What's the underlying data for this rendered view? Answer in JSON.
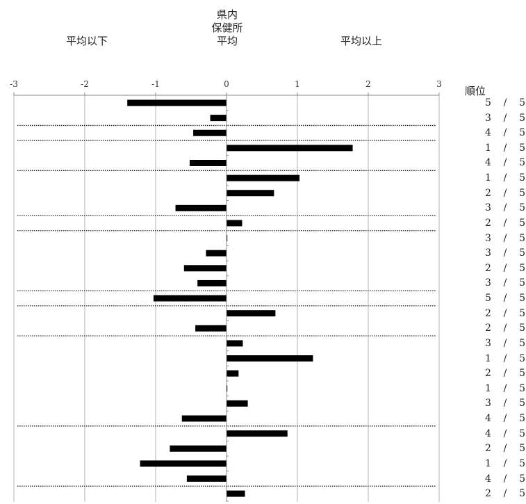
{
  "header": {
    "center_line1": "県内",
    "center_line2": "保健所",
    "center_line3": "平均",
    "below_label": "平均以下",
    "above_label": "平均以上"
  },
  "rank_header": "順位",
  "chart_data": {
    "type": "bar",
    "orientation": "horizontal",
    "xlim": [
      -3,
      3
    ],
    "ticks": [
      -3,
      -2,
      -1,
      0,
      1,
      2,
      3
    ],
    "tick_labels": [
      "-3",
      "-2",
      "-1",
      "0",
      "1",
      "2",
      "3"
    ],
    "grid": true,
    "bar_color": "#000000",
    "values": [
      -1.4,
      -0.23,
      -0.47,
      1.78,
      -0.52,
      1.03,
      0.67,
      -0.72,
      0.22,
      0.01,
      -0.29,
      -0.6,
      -0.41,
      -1.03,
      0.69,
      -0.44,
      0.23,
      1.22,
      0.17,
      0.0,
      0.3,
      -0.63,
      0.86,
      -0.8,
      -1.22,
      -0.56,
      0.26
    ],
    "ranks": [
      "5",
      "3",
      "4",
      "1",
      "4",
      "1",
      "2",
      "3",
      "2",
      "3",
      "3",
      "2",
      "3",
      "5",
      "2",
      "2",
      "3",
      "1",
      "2",
      "1",
      "3",
      "4",
      "4",
      "2",
      "1",
      "4",
      "2"
    ],
    "rank_total": "5",
    "rank_separator": "/",
    "group_separators_after": [
      1,
      2,
      4,
      7,
      8,
      12,
      13,
      15,
      21,
      25
    ]
  }
}
